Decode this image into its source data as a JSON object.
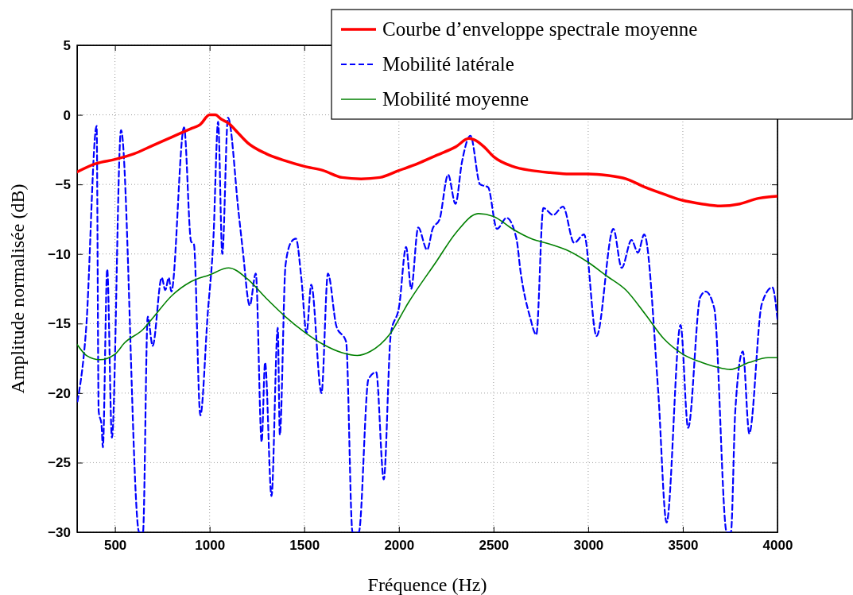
{
  "chart_data": {
    "type": "line",
    "xlabel": "Fréquence (Hz)",
    "ylabel": "Amplitude normalisée (dB)",
    "xlim": [
      300,
      4000
    ],
    "xticks": [
      500,
      1000,
      1500,
      2000,
      2500,
      3000,
      3500,
      4000
    ],
    "ylim": [
      -30,
      5
    ],
    "yticks": [
      {
        "value": -30,
        "label": "−30"
      },
      {
        "value": -25,
        "label": "−25"
      },
      {
        "value": -20,
        "label": "−20"
      },
      {
        "value": -15,
        "label": "−15"
      },
      {
        "value": -10,
        "label": "−10"
      },
      {
        "value": -5,
        "label": "−5"
      },
      0,
      5
    ],
    "grid": true,
    "legend": "top right",
    "series": [
      {
        "name": "Courbe d’enveloppe spectrale moyenne",
        "color": "#ff0000",
        "line_style": "solid",
        "x": [
          300,
          400,
          500,
          600,
          700,
          800,
          900,
          950,
          1000,
          1030,
          1060,
          1100,
          1150,
          1200,
          1300,
          1400,
          1500,
          1600,
          1700,
          1800,
          1900,
          2000,
          2100,
          2200,
          2300,
          2370,
          2400,
          2450,
          2500,
          2600,
          2700,
          2800,
          2900,
          3000,
          3100,
          3200,
          3300,
          3400,
          3500,
          3600,
          3700,
          3800,
          3900,
          3950,
          4000
        ],
        "values": [
          -4.1,
          -3.5,
          -3.2,
          -2.8,
          -2.2,
          -1.6,
          -1.0,
          -0.7,
          0,
          0,
          -0.3,
          -0.6,
          -1.3,
          -2.0,
          -2.8,
          -3.3,
          -3.7,
          -4.0,
          -4.5,
          -4.6,
          -4.5,
          -4.0,
          -3.5,
          -2.9,
          -2.3,
          -1.7,
          -1.8,
          -2.3,
          -3.0,
          -3.7,
          -4.0,
          -4.15,
          -4.25,
          -4.25,
          -4.35,
          -4.6,
          -5.2,
          -5.7,
          -6.15,
          -6.4,
          -6.55,
          -6.4,
          -6.0,
          -5.9,
          -5.85
        ]
      },
      {
        "name": "Mobilité latérale",
        "color": "#0000ff",
        "line_style": "dashed",
        "x": [
          302,
          348,
          403,
          414,
          429,
          436,
          459,
          484,
          532,
          628,
          648,
          673,
          699,
          747,
          766,
          784,
          798,
          865,
          902,
          917,
          951,
          990,
          1020,
          1045,
          1067,
          1097,
          1153,
          1175,
          1212,
          1244,
          1275,
          1293,
          1327,
          1360,
          1371,
          1401,
          1433,
          1456,
          1485,
          1512,
          1537,
          1591,
          1625,
          1670,
          1721,
          1755,
          1788,
          1839,
          1880,
          1920,
          1957,
          2002,
          2038,
          2065,
          2102,
          2149,
          2178,
          2215,
          2260,
          2299,
          2333,
          2378,
          2429,
          2471,
          2518,
          2569,
          2621,
          2643,
          2692,
          2726,
          2763,
          2815,
          2867,
          2926,
          2978,
          3044,
          3133,
          3177,
          3229,
          3263,
          3296,
          3370,
          3414,
          3488,
          3528,
          3592,
          3621,
          3666,
          3732,
          3754,
          3777,
          3817,
          3851,
          3917,
          3973,
          4000
        ],
        "values": [
          -20.6,
          -15.3,
          -0.8,
          -21.3,
          -22.3,
          -23.9,
          -11.1,
          -23.2,
          -1.1,
          -30,
          -30,
          -14.5,
          -16.6,
          -11.7,
          -12.6,
          -11.7,
          -12.7,
          -0.9,
          -9.1,
          -9.3,
          -21.6,
          -14.3,
          -8.9,
          -0.5,
          -10.0,
          -0.2,
          -7.0,
          -9.7,
          -13.7,
          -11.4,
          -23.5,
          -17.8,
          -27.4,
          -15.3,
          -23.0,
          -10.8,
          -9.1,
          -8.9,
          -11.8,
          -15.7,
          -12.2,
          -20.0,
          -11.4,
          -15.2,
          -16.3,
          -30,
          -30,
          -19.0,
          -18.5,
          -26.2,
          -15.8,
          -13.7,
          -9.5,
          -12.5,
          -8.1,
          -9.7,
          -8.2,
          -7.5,
          -4.3,
          -6.4,
          -3.4,
          -1.5,
          -5.0,
          -5.2,
          -8.2,
          -7.4,
          -8.9,
          -11.3,
          -14.5,
          -15.8,
          -6.7,
          -7.2,
          -6.6,
          -9.2,
          -8.6,
          -15.9,
          -8.2,
          -11.0,
          -9.0,
          -9.9,
          -8.6,
          -19.9,
          -29.3,
          -15.1,
          -22.5,
          -13.1,
          -12.7,
          -13.9,
          -30,
          -30,
          -21.3,
          -17.0,
          -22.9,
          -13.6,
          -12.4,
          -14.7
        ]
      },
      {
        "name": "Mobilité moyenne",
        "color": "#008000",
        "line_style": "solid",
        "x": [
          300,
          350,
          420,
          500,
          550,
          650,
          700,
          800,
          900,
          1000,
          1100,
          1200,
          1300,
          1400,
          1500,
          1600,
          1700,
          1780,
          1850,
          1950,
          2050,
          2200,
          2300,
          2420,
          2500,
          2600,
          2700,
          2800,
          2900,
          3000,
          3100,
          3200,
          3300,
          3400,
          3500,
          3600,
          3700,
          3750,
          3850,
          3950,
          4000
        ],
        "values": [
          -16.5,
          -17.3,
          -17.6,
          -17.2,
          -16.4,
          -15.4,
          -14.6,
          -13.0,
          -12.0,
          -11.5,
          -11.0,
          -11.8,
          -13.2,
          -14.5,
          -15.6,
          -16.5,
          -17.1,
          -17.3,
          -17.0,
          -15.8,
          -13.5,
          -10.5,
          -8.5,
          -7.1,
          -7.3,
          -8.2,
          -8.9,
          -9.3,
          -9.8,
          -10.6,
          -11.6,
          -12.6,
          -14.3,
          -16.1,
          -17.2,
          -17.8,
          -18.2,
          -18.3,
          -17.8,
          -17.45,
          -17.45
        ]
      }
    ]
  }
}
